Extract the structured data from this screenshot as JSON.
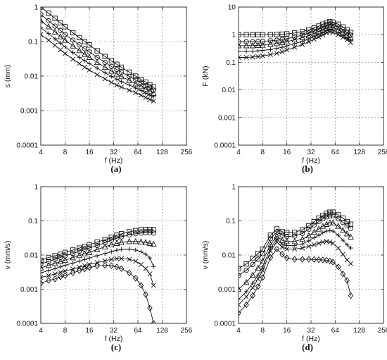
{
  "chart_data": [
    {
      "id": "a",
      "type": "line",
      "caption": "(a)",
      "xlabel": "f (Hz)",
      "ylabel": "s (mm)",
      "xscale": "log2",
      "yscale": "log10",
      "xlim": [
        4,
        256
      ],
      "ylim": [
        0.0001,
        1
      ],
      "xticks": [
        "4",
        "8",
        "16",
        "32",
        "64",
        "128",
        "256"
      ],
      "yticks": [
        "0.0001",
        "0.001",
        "0.01",
        "0.1",
        "1"
      ],
      "grid": true,
      "x": [
        4,
        5,
        6,
        7,
        8,
        10,
        12,
        14,
        16,
        20,
        25,
        30,
        35,
        40,
        50,
        60,
        70,
        80,
        90,
        100
      ],
      "series": [
        {
          "marker": "square",
          "values": [
            1.0,
            0.66,
            0.47,
            0.35,
            0.27,
            0.18,
            0.13,
            0.1,
            0.08,
            0.054,
            0.037,
            0.028,
            0.022,
            0.018,
            0.013,
            0.01,
            0.008,
            0.0067,
            0.0056,
            0.0048
          ]
        },
        {
          "marker": "circle",
          "values": [
            0.6,
            0.4,
            0.28,
            0.21,
            0.16,
            0.11,
            0.08,
            0.062,
            0.05,
            0.035,
            0.025,
            0.019,
            0.0155,
            0.013,
            0.0098,
            0.0078,
            0.0063,
            0.0053,
            0.0045,
            0.0039
          ]
        },
        {
          "marker": "triangle",
          "values": [
            0.4,
            0.27,
            0.19,
            0.14,
            0.11,
            0.075,
            0.055,
            0.043,
            0.035,
            0.025,
            0.018,
            0.014,
            0.0115,
            0.0097,
            0.0075,
            0.006,
            0.005,
            0.0042,
            0.0036,
            0.0032
          ]
        },
        {
          "marker": "plus",
          "values": [
            0.25,
            0.17,
            0.12,
            0.09,
            0.07,
            0.048,
            0.035,
            0.028,
            0.023,
            0.017,
            0.0125,
            0.0098,
            0.0081,
            0.0069,
            0.0055,
            0.0045,
            0.0038,
            0.0032,
            0.0028,
            0.0025
          ]
        },
        {
          "marker": "x",
          "values": [
            0.16,
            0.11,
            0.078,
            0.058,
            0.045,
            0.031,
            0.023,
            0.018,
            0.015,
            0.011,
            0.0083,
            0.0066,
            0.0055,
            0.0048,
            0.0039,
            0.0033,
            0.0028,
            0.0024,
            0.0021,
            0.0019
          ]
        }
      ]
    },
    {
      "id": "b",
      "type": "line",
      "caption": "(b)",
      "xlabel": "f (Hz)",
      "ylabel": "F (kN)",
      "xscale": "log2",
      "yscale": "log10",
      "xlim": [
        4,
        256
      ],
      "ylim": [
        0.0001,
        10
      ],
      "xticks": [
        "4",
        "8",
        "16",
        "32",
        "64",
        "128",
        "256"
      ],
      "yticks": [
        "0.0001",
        "0.001",
        "0.01",
        "0.1",
        "1",
        "10"
      ],
      "grid": true,
      "x": [
        4,
        5,
        6,
        7,
        8,
        10,
        12,
        14,
        16,
        20,
        25,
        30,
        35,
        40,
        45,
        50,
        55,
        60,
        70,
        80,
        90,
        100
      ],
      "series": [
        {
          "marker": "square",
          "values": [
            1.0,
            1.0,
            1.0,
            1.0,
            1.0,
            1.0,
            1.02,
            1.04,
            1.07,
            1.15,
            1.3,
            1.5,
            1.75,
            2.05,
            2.4,
            2.75,
            2.95,
            2.85,
            2.4,
            1.9,
            1.5,
            1.2
          ]
        },
        {
          "marker": "circle",
          "values": [
            0.55,
            0.55,
            0.55,
            0.56,
            0.57,
            0.6,
            0.63,
            0.67,
            0.72,
            0.82,
            0.97,
            1.15,
            1.35,
            1.6,
            1.85,
            2.15,
            2.3,
            2.2,
            1.85,
            1.5,
            1.2,
            0.95
          ]
        },
        {
          "marker": "triangle",
          "values": [
            0.4,
            0.4,
            0.4,
            0.41,
            0.42,
            0.45,
            0.48,
            0.52,
            0.56,
            0.65,
            0.78,
            0.92,
            1.1,
            1.3,
            1.5,
            1.75,
            1.9,
            1.8,
            1.5,
            1.2,
            0.95,
            0.78
          ]
        },
        {
          "marker": "plus",
          "values": [
            0.25,
            0.25,
            0.25,
            0.26,
            0.27,
            0.29,
            0.32,
            0.35,
            0.39,
            0.47,
            0.57,
            0.7,
            0.85,
            1.02,
            1.2,
            1.4,
            1.52,
            1.45,
            1.2,
            0.95,
            0.75,
            0.62
          ]
        },
        {
          "marker": "x",
          "values": [
            0.15,
            0.15,
            0.155,
            0.16,
            0.17,
            0.19,
            0.21,
            0.24,
            0.28,
            0.35,
            0.44,
            0.55,
            0.68,
            0.82,
            0.98,
            1.15,
            1.25,
            1.2,
            1.0,
            0.8,
            0.65,
            0.52
          ]
        }
      ]
    },
    {
      "id": "c",
      "type": "line",
      "caption": "(c)",
      "xlabel": "f (Hz)",
      "ylabel": "v (mm/s)",
      "xscale": "log2",
      "yscale": "log10",
      "xlim": [
        4,
        256
      ],
      "ylim": [
        0.0001,
        1
      ],
      "xticks": [
        "4",
        "8",
        "16",
        "32",
        "64",
        "128",
        "256"
      ],
      "yticks": [
        "0.0001",
        "0.001",
        "0.01",
        "0.1",
        "1"
      ],
      "grid": true,
      "series": [
        {
          "marker": "square",
          "x": [
            4,
            5,
            6,
            7,
            8,
            10,
            12,
            14,
            16,
            20,
            25,
            30,
            35,
            40,
            50,
            60,
            70,
            80,
            90,
            100
          ],
          "values": [
            0.007,
            0.0085,
            0.0095,
            0.0105,
            0.012,
            0.014,
            0.016,
            0.018,
            0.02,
            0.024,
            0.028,
            0.033,
            0.038,
            0.042,
            0.048,
            0.052,
            0.055,
            0.056,
            0.056,
            0.055
          ]
        },
        {
          "marker": "circle",
          "x": [
            4,
            5,
            6,
            7,
            8,
            10,
            12,
            14,
            16,
            20,
            25,
            30,
            35,
            40,
            50,
            60,
            70,
            80,
            90,
            100
          ],
          "values": [
            0.0055,
            0.0065,
            0.0075,
            0.0085,
            0.0095,
            0.011,
            0.013,
            0.0145,
            0.016,
            0.019,
            0.023,
            0.027,
            0.031,
            0.034,
            0.039,
            0.042,
            0.044,
            0.045,
            0.045,
            0.044
          ]
        },
        {
          "marker": "triangle",
          "x": [
            4,
            5,
            6,
            7,
            8,
            10,
            12,
            14,
            16,
            20,
            25,
            30,
            35,
            40,
            50,
            60,
            70,
            80,
            90,
            100
          ],
          "values": [
            0.0042,
            0.005,
            0.0057,
            0.0064,
            0.0071,
            0.0084,
            0.0097,
            0.011,
            0.012,
            0.0145,
            0.0175,
            0.02,
            0.022,
            0.0235,
            0.025,
            0.025,
            0.0245,
            0.0235,
            0.0222,
            0.021
          ]
        },
        {
          "marker": "plus",
          "x": [
            4,
            5,
            6,
            7,
            8,
            10,
            12,
            14,
            16,
            20,
            25,
            30,
            35,
            40,
            50,
            60,
            70,
            80,
            90,
            100
          ],
          "values": [
            0.003,
            0.0035,
            0.004,
            0.0045,
            0.005,
            0.0058,
            0.0066,
            0.0074,
            0.0082,
            0.0095,
            0.011,
            0.0125,
            0.0138,
            0.0145,
            0.0148,
            0.014,
            0.0125,
            0.0105,
            0.0082,
            0.0046
          ]
        },
        {
          "marker": "x",
          "x": [
            4,
            5,
            6,
            7,
            8,
            10,
            12,
            14,
            16,
            20,
            25,
            30,
            35,
            40,
            50,
            60,
            70,
            80,
            90,
            100
          ],
          "values": [
            0.0022,
            0.0025,
            0.0028,
            0.0031,
            0.0034,
            0.0039,
            0.0044,
            0.0049,
            0.0053,
            0.006,
            0.0068,
            0.0074,
            0.0078,
            0.0079,
            0.0075,
            0.0066,
            0.0053,
            0.004,
            0.0028,
            0.0013
          ]
        },
        {
          "marker": "diamond",
          "x": [
            4,
            5,
            6,
            7,
            8,
            10,
            12,
            14,
            16,
            20,
            25,
            30,
            35,
            40,
            50,
            60,
            70,
            80,
            90,
            100
          ],
          "values": [
            0.0015,
            0.0018,
            0.002,
            0.0023,
            0.0025,
            0.003,
            0.0035,
            0.0039,
            0.0043,
            0.0048,
            0.005,
            0.0049,
            0.0045,
            0.004,
            0.003,
            0.0021,
            0.0013,
            0.0007,
            0.00028,
            0.0001
          ]
        }
      ]
    },
    {
      "id": "d",
      "type": "line",
      "caption": "(d)",
      "xlabel": "f (Hz)",
      "ylabel": "v (mm/s)",
      "xscale": "log2",
      "yscale": "log10",
      "xlim": [
        4,
        256
      ],
      "ylim": [
        0.0001,
        1
      ],
      "xticks": [
        "4",
        "8",
        "16",
        "32",
        "64",
        "128",
        "256"
      ],
      "yticks": [
        "0.0001",
        "0.001",
        "0.01",
        "0.1",
        "1"
      ],
      "grid": true,
      "x": [
        4,
        5,
        6,
        7,
        8,
        10,
        12,
        14,
        16,
        20,
        25,
        30,
        35,
        40,
        45,
        50,
        55,
        60,
        70,
        80,
        90,
        100
      ],
      "series": [
        {
          "marker": "square",
          "values": [
            0.004,
            0.0055,
            0.008,
            0.011,
            0.015,
            0.038,
            0.058,
            0.048,
            0.045,
            0.046,
            0.055,
            0.072,
            0.095,
            0.12,
            0.145,
            0.165,
            0.18,
            0.18,
            0.15,
            0.12,
            0.095,
            0.08
          ]
        },
        {
          "marker": "circle",
          "values": [
            0.0025,
            0.0036,
            0.0053,
            0.0075,
            0.011,
            0.03,
            0.047,
            0.038,
            0.035,
            0.036,
            0.043,
            0.057,
            0.075,
            0.095,
            0.115,
            0.13,
            0.14,
            0.14,
            0.115,
            0.09,
            0.072,
            0.06
          ]
        },
        {
          "marker": "triangle",
          "values": [
            0.001,
            0.0016,
            0.0026,
            0.0042,
            0.0068,
            0.02,
            0.036,
            0.027,
            0.025,
            0.025,
            0.029,
            0.037,
            0.047,
            0.058,
            0.07,
            0.08,
            0.088,
            0.088,
            0.07,
            0.053,
            0.042,
            0.034
          ]
        },
        {
          "marker": "plus",
          "values": [
            0.0005,
            0.00085,
            0.0015,
            0.0026,
            0.0045,
            0.016,
            0.029,
            0.021,
            0.019,
            0.019,
            0.021,
            0.026,
            0.032,
            0.038,
            0.045,
            0.05,
            0.052,
            0.05,
            0.038,
            0.027,
            0.02,
            0.016
          ]
        },
        {
          "marker": "x",
          "values": [
            0.00035,
            0.0006,
            0.0011,
            0.002,
            0.0035,
            0.013,
            0.024,
            0.017,
            0.015,
            0.015,
            0.016,
            0.018,
            0.02,
            0.022,
            0.024,
            0.025,
            0.024,
            0.022,
            0.016,
            0.0105,
            0.0072,
            0.0056
          ]
        },
        {
          "marker": "diamond",
          "values": [
            0.0002,
            0.00035,
            0.00065,
            0.0012,
            0.0022,
            0.0085,
            0.015,
            0.0105,
            0.0082,
            0.0075,
            0.0075,
            0.0075,
            0.0074,
            0.0073,
            0.0072,
            0.007,
            0.0067,
            0.0062,
            0.0045,
            0.0028,
            0.0018,
            0.00065
          ]
        }
      ]
    }
  ]
}
